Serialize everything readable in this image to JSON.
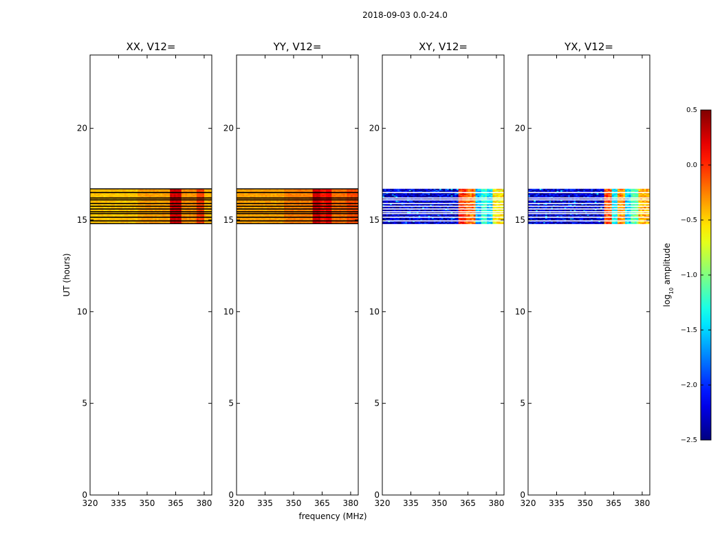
{
  "suptitle": "2018-09-03 0.0-24.0",
  "chart_data": {
    "type": "heatmap",
    "xlabel": "frequency (MHz)",
    "ylabel": "UT (hours)",
    "xlim": [
      320,
      384
    ],
    "ylim": [
      0,
      24
    ],
    "xticks": [
      320,
      335,
      350,
      365,
      380
    ],
    "yticks": [
      0,
      5,
      10,
      15,
      20
    ],
    "data_time_range": [
      14.8,
      16.7
    ],
    "gap_rows_hours": [
      14.95,
      15.15,
      15.35,
      15.45,
      15.6,
      15.75,
      15.9,
      16.1,
      16.2,
      16.5
    ],
    "panels": [
      {
        "title": "XX, V12=",
        "kind": "auto",
        "freq_profile_log_amp": [
          {
            "from": 320,
            "to": 345,
            "value": -0.45
          },
          {
            "from": 345,
            "to": 362,
            "value": -0.35
          },
          {
            "from": 362,
            "to": 368,
            "value": 0.25
          },
          {
            "from": 368,
            "to": 376,
            "value": -0.3
          },
          {
            "from": 376,
            "to": 380,
            "value": -0.05
          },
          {
            "from": 380,
            "to": 384,
            "value": -0.4
          }
        ]
      },
      {
        "title": "YY, V12=",
        "kind": "auto",
        "freq_profile_log_amp": [
          {
            "from": 320,
            "to": 345,
            "value": -0.35
          },
          {
            "from": 345,
            "to": 360,
            "value": -0.25
          },
          {
            "from": 360,
            "to": 364,
            "value": 0.25
          },
          {
            "from": 364,
            "to": 367,
            "value": 0.05
          },
          {
            "from": 367,
            "to": 370,
            "value": 0.15
          },
          {
            "from": 370,
            "to": 378,
            "value": -0.2
          },
          {
            "from": 378,
            "to": 384,
            "value": -0.1
          }
        ]
      },
      {
        "title": "XY, V12=",
        "kind": "cross",
        "freq_profile_log_amp": [
          {
            "from": 320,
            "to": 360,
            "value": -2.3
          },
          {
            "from": 360,
            "to": 364,
            "value": 0.0
          },
          {
            "from": 364,
            "to": 369,
            "value": -0.2
          },
          {
            "from": 369,
            "to": 372,
            "value": -1.6
          },
          {
            "from": 372,
            "to": 375,
            "value": -1.2
          },
          {
            "from": 375,
            "to": 378,
            "value": -1.5
          },
          {
            "from": 378,
            "to": 384,
            "value": -0.6
          }
        ]
      },
      {
        "title": "YX, V12=",
        "kind": "cross",
        "freq_profile_log_amp": [
          {
            "from": 320,
            "to": 360,
            "value": -2.3
          },
          {
            "from": 360,
            "to": 364,
            "value": -0.1
          },
          {
            "from": 364,
            "to": 367,
            "value": -1.4
          },
          {
            "from": 367,
            "to": 371,
            "value": -0.3
          },
          {
            "from": 371,
            "to": 374,
            "value": -1.5
          },
          {
            "from": 374,
            "to": 378,
            "value": -1.1
          },
          {
            "from": 378,
            "to": 384,
            "value": -0.4
          }
        ]
      }
    ],
    "colorbar": {
      "label": "log10 amplitude",
      "colormap": "jet",
      "range": [
        -2.5,
        0.5
      ],
      "ticks": [
        0.5,
        0.0,
        -0.5,
        -1.0,
        -1.5,
        -2.0,
        -2.5
      ],
      "tick_labels": [
        "0.5",
        "0.0",
        "−0.5",
        "−1.0",
        "−1.5",
        "−2.0",
        "−2.5"
      ]
    }
  }
}
